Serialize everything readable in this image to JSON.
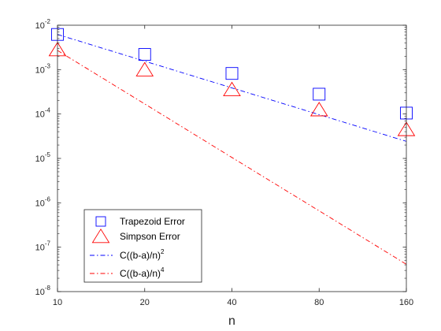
{
  "chart_data": {
    "type": "scatter",
    "title": "",
    "xlabel": "n",
    "ylabel": "",
    "xscale": "log",
    "yscale": "log",
    "xlim": [
      10,
      160
    ],
    "ylim": [
      1e-08,
      0.01
    ],
    "grid": false,
    "legend_position": "bottom-left",
    "x_ticks": [
      {
        "value": 10,
        "label": "10"
      },
      {
        "value": 20,
        "label": "20"
      },
      {
        "value": 40,
        "label": "40"
      },
      {
        "value": 80,
        "label": "80"
      },
      {
        "value": 160,
        "label": "160"
      }
    ],
    "y_ticks": [
      {
        "value": 1e-08,
        "base": "10",
        "exp": "-8"
      },
      {
        "value": 1e-07,
        "base": "10",
        "exp": "-7"
      },
      {
        "value": 1e-06,
        "base": "10",
        "exp": "-6"
      },
      {
        "value": 1e-05,
        "base": "10",
        "exp": "-5"
      },
      {
        "value": 0.0001,
        "base": "10",
        "exp": "-4"
      },
      {
        "value": 0.001,
        "base": "10",
        "exp": "-3"
      },
      {
        "value": 0.01,
        "base": "10",
        "exp": "-2"
      }
    ],
    "x": [
      10,
      20,
      40,
      80,
      160
    ],
    "series": [
      {
        "name": "Trapezoid Error",
        "kind": "marker",
        "marker": "square",
        "color": "#0000ff",
        "values": [
          0.0062,
          0.0022,
          0.00082,
          0.00028,
          0.000105
        ]
      },
      {
        "name": "Simpson Error",
        "kind": "marker",
        "marker": "triangle",
        "color": "#ff0000",
        "values": [
          0.0027,
          0.00095,
          0.00034,
          0.00012,
          4.3e-05
        ]
      },
      {
        "name": "C((b-a)/n)",
        "name_sup": "2",
        "kind": "line",
        "dash": "dash-dot",
        "color": "#0000ff",
        "values": [
          0.0062,
          0.00155,
          0.0003875,
          9.69e-05,
          2.42e-05
        ]
      },
      {
        "name": "C((b-a)/n)",
        "name_sup": "4",
        "kind": "line",
        "dash": "dash-dot",
        "color": "#ff0000",
        "values": [
          0.0027,
          0.00016875,
          1.05e-05,
          6.6e-07,
          4.12e-08
        ]
      }
    ]
  }
}
